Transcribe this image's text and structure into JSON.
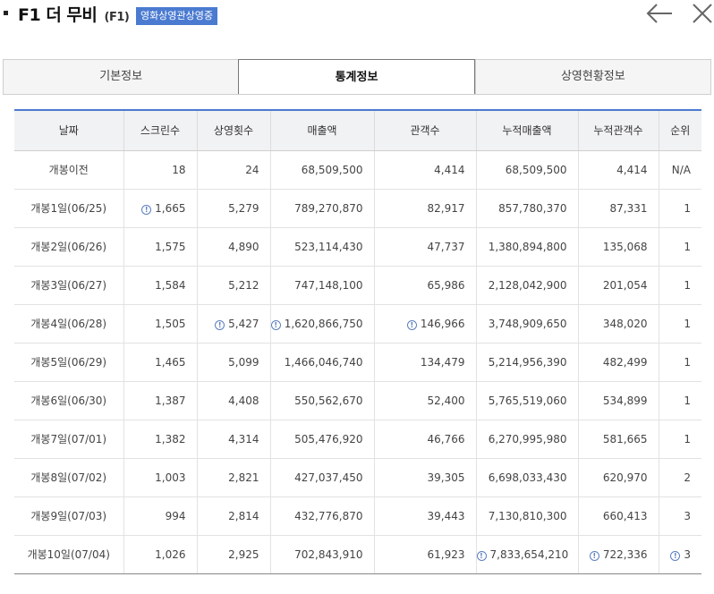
{
  "header": {
    "title": "F1 더 무비",
    "subtitle": "(F1)",
    "badge": "영화상영관상영중"
  },
  "tabs": [
    {
      "label": "기본정보",
      "active": false
    },
    {
      "label": "통계정보",
      "active": true
    },
    {
      "label": "상영현황정보",
      "active": false
    }
  ],
  "table": {
    "headers": [
      "날짜",
      "스크린수",
      "상영횟수",
      "매출액",
      "관객수",
      "누적매출액",
      "누적관객수",
      "순위"
    ],
    "rows": [
      {
        "cells": [
          "개봉이전",
          "18",
          "24",
          "68,509,500",
          "4,414",
          "68,509,500",
          "4,414",
          "N/A"
        ],
        "flags": []
      },
      {
        "cells": [
          "개봉1일(06/25)",
          "1,665",
          "5,279",
          "789,270,870",
          "82,917",
          "857,780,370",
          "87,331",
          "1"
        ],
        "flags": [
          1
        ]
      },
      {
        "cells": [
          "개봉2일(06/26)",
          "1,575",
          "4,890",
          "523,114,430",
          "47,737",
          "1,380,894,800",
          "135,068",
          "1"
        ],
        "flags": []
      },
      {
        "cells": [
          "개봉3일(06/27)",
          "1,584",
          "5,212",
          "747,148,100",
          "65,986",
          "2,128,042,900",
          "201,054",
          "1"
        ],
        "flags": []
      },
      {
        "cells": [
          "개봉4일(06/28)",
          "1,505",
          "5,427",
          "1,620,866,750",
          "146,966",
          "3,748,909,650",
          "348,020",
          "1"
        ],
        "flags": [
          2,
          3,
          4
        ]
      },
      {
        "cells": [
          "개봉5일(06/29)",
          "1,465",
          "5,099",
          "1,466,046,740",
          "134,479",
          "5,214,956,390",
          "482,499",
          "1"
        ],
        "flags": []
      },
      {
        "cells": [
          "개봉6일(06/30)",
          "1,387",
          "4,408",
          "550,562,670",
          "52,400",
          "5,765,519,060",
          "534,899",
          "1"
        ],
        "flags": []
      },
      {
        "cells": [
          "개봉7일(07/01)",
          "1,382",
          "4,314",
          "505,476,920",
          "46,766",
          "6,270,995,980",
          "581,665",
          "1"
        ],
        "flags": []
      },
      {
        "cells": [
          "개봉8일(07/02)",
          "1,003",
          "2,821",
          "427,037,450",
          "39,305",
          "6,698,033,430",
          "620,970",
          "2"
        ],
        "flags": []
      },
      {
        "cells": [
          "개봉9일(07/03)",
          "994",
          "2,814",
          "432,776,870",
          "39,443",
          "7,130,810,300",
          "660,413",
          "3"
        ],
        "flags": []
      },
      {
        "cells": [
          "개봉10일(07/04)",
          "1,026",
          "2,925",
          "702,843,910",
          "61,923",
          "7,833,654,210",
          "722,336",
          "3"
        ],
        "flags": [
          5,
          6,
          7
        ]
      }
    ]
  },
  "colors": {
    "accent": "#4b7bd0",
    "header_bg": "#f1f2f4",
    "warn_icon": "#5b7fbf"
  },
  "icons": {
    "back": "arrow-left-icon",
    "close": "close-icon",
    "flag": "info-circle-icon"
  }
}
